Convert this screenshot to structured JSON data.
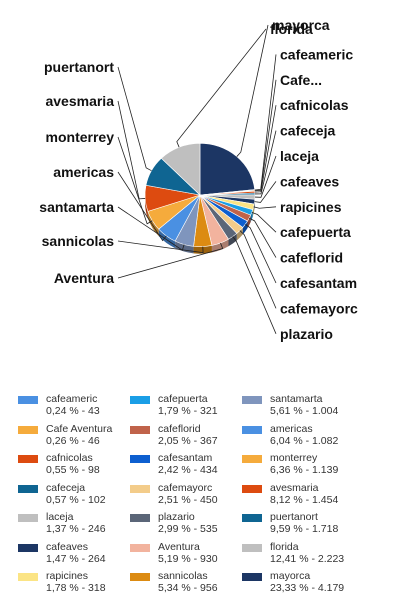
{
  "chart_data": {
    "type": "pie",
    "title": "",
    "label_mode": "outside labels with leader lines",
    "legend_position": "bottom",
    "slices": [
      {
        "label": "mayorca",
        "legend": "mayorca",
        "pct": "23,33 %",
        "count": "4.179",
        "value": 23.33,
        "color": "#1c3664"
      },
      {
        "label": "cafeameric",
        "legend": "cafeameric",
        "pct": "0,24 %",
        "count": "43",
        "value": 0.24,
        "color": "#4a90e2"
      },
      {
        "label": "Cafe...",
        "legend": "Cafe Aventura",
        "pct": "0,26 %",
        "count": "46",
        "value": 0.26,
        "color": "#f5ab3c"
      },
      {
        "label": "cafnicolas",
        "legend": "cafnicolas",
        "pct": "0,55 %",
        "count": "98",
        "value": 0.55,
        "color": "#dd4b10"
      },
      {
        "label": "cafeceja",
        "legend": "cafeceja",
        "pct": "0,57 %",
        "count": "102",
        "value": 0.57,
        "color": "#0f6592"
      },
      {
        "label": "laceja",
        "legend": "laceja",
        "pct": "1,37 %",
        "count": "246",
        "value": 1.37,
        "color": "#bfbfbf"
      },
      {
        "label": "cafeaves",
        "legend": "cafeaves",
        "pct": "1,47 %",
        "count": "264",
        "value": 1.47,
        "color": "#1c3664"
      },
      {
        "label": "rapicines",
        "legend": "rapicines",
        "pct": "1,78 %",
        "count": "318",
        "value": 1.78,
        "color": "#fbe485"
      },
      {
        "label": "cafepuerta",
        "legend": "cafepuerta",
        "pct": "1,79 %",
        "count": "321",
        "value": 1.79,
        "color": "#1a9ee6"
      },
      {
        "label": "cafeflorid",
        "legend": "cafeflorid",
        "pct": "2,05 %",
        "count": "367",
        "value": 2.05,
        "color": "#c0634a"
      },
      {
        "label": "cafesantam",
        "legend": "cafesantam",
        "pct": "2,42 %",
        "count": "434",
        "value": 2.42,
        "color": "#0d5fd0"
      },
      {
        "label": "cafemayorc",
        "legend": "cafemayorc",
        "pct": "2,51 %",
        "count": "450",
        "value": 2.51,
        "color": "#f3cc8a"
      },
      {
        "label": "plazario",
        "legend": "plazario",
        "pct": "2,99 %",
        "count": "535",
        "value": 2.99,
        "color": "#5b6678"
      },
      {
        "label": "Aventura",
        "legend": "Aventura",
        "pct": "5,19 %",
        "count": "930",
        "value": 5.19,
        "color": "#f2b39e"
      },
      {
        "label": "sannicolas",
        "legend": "sannicolas",
        "pct": "5,34 %",
        "count": "956",
        "value": 5.34,
        "color": "#dc8b12"
      },
      {
        "label": "santamarta",
        "legend": "santamarta",
        "pct": "5,61 %",
        "count": "1.004",
        "value": 5.61,
        "color": "#7f95bd"
      },
      {
        "label": "americas",
        "legend": "americas",
        "pct": "6,04 %",
        "count": "1.082",
        "value": 6.04,
        "color": "#4a90e2"
      },
      {
        "label": "monterrey",
        "legend": "monterrey",
        "pct": "6,36 %",
        "count": "1.139",
        "value": 6.36,
        "color": "#f5ab3c"
      },
      {
        "label": "avesmaria",
        "legend": "avesmaria",
        "pct": "8,12 %",
        "count": "1.454",
        "value": 8.12,
        "color": "#dd4b10"
      },
      {
        "label": "puertanort",
        "legend": "puertanort",
        "pct": "9,59 %",
        "count": "1.718",
        "value": 9.59,
        "color": "#0f6592"
      },
      {
        "label": "florida",
        "legend": "florida",
        "pct": "12,41 %",
        "count": "2.223",
        "value": 12.41,
        "color": "#bfbfbf"
      }
    ],
    "legend_order": [
      "cafeameric",
      "Cafe...",
      "cafnicolas",
      "cafeceja",
      "laceja",
      "cafeaves",
      "rapicines",
      "cafepuerta",
      "cafeflorid",
      "cafesantam",
      "cafemayorc",
      "plazario",
      "Aventura",
      "sannicolas",
      "santamarta",
      "americas",
      "monterrey",
      "avesmaria",
      "puertanort",
      "florida",
      "mayorca"
    ]
  }
}
